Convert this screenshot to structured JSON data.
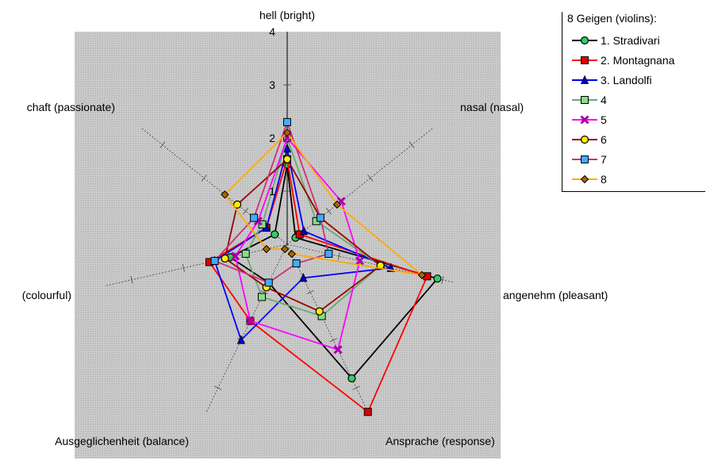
{
  "chart_data": {
    "type": "radar",
    "axes": [
      "hell (bright)",
      "nasal (nasal)",
      "angenehm (pleasant)",
      "Ansprache (response)",
      "Ausgeglichenheit (balance)",
      "(colourful)",
      "chaft (passionate)"
    ],
    "r_ticks": [
      "1",
      "2",
      "3",
      "4"
    ],
    "r_max": 4,
    "legend_title": "8 Geigen (violins):",
    "series": [
      {
        "name": "1. Stradivari",
        "values": [
          1.5,
          0.2,
          2.9,
          2.8,
          0.8,
          1.1,
          0.3
        ],
        "color": "#000000",
        "marker": "circle",
        "marker_fill": "#33cc66"
      },
      {
        "name": "2. Montagnana",
        "values": [
          1.6,
          0.3,
          2.7,
          3.5,
          1.6,
          1.5,
          0.5
        ],
        "color": "#ff0000",
        "marker": "square",
        "marker_fill": "#dd0000"
      },
      {
        "name": "3. Landolfi",
        "values": [
          1.8,
          0.4,
          2.0,
          0.7,
          2.0,
          1.4,
          0.5
        ],
        "color": "#0000ff",
        "marker": "triangle",
        "marker_fill": "#0000cc"
      },
      {
        "name": "4",
        "values": [
          2.0,
          0.7,
          1.8,
          1.5,
          1.1,
          0.8,
          0.6
        ],
        "color": "#66aa77",
        "marker": "square",
        "marker_fill": "#88dd88"
      },
      {
        "name": "5",
        "values": [
          2.0,
          1.3,
          1.4,
          2.2,
          1.6,
          1.0,
          0.7
        ],
        "color": "#ff00ff",
        "marker": "x",
        "marker_fill": "#aa00aa"
      },
      {
        "name": "6",
        "values": [
          1.6,
          0.8,
          1.8,
          1.4,
          0.9,
          1.2,
          1.2
        ],
        "color": "#990000",
        "marker": "circle",
        "marker_fill": "#ffee00"
      },
      {
        "name": "7",
        "values": [
          2.3,
          0.8,
          0.8,
          0.4,
          0.8,
          1.4,
          0.8
        ],
        "color": "#cc3377",
        "marker": "square",
        "marker_fill": "#44aaff"
      },
      {
        "name": "8",
        "values": [
          2.1,
          1.2,
          2.6,
          0.2,
          0.1,
          0.4,
          1.5
        ],
        "color": "#ffaa00",
        "marker": "diamond",
        "marker_fill": "#aa6600"
      }
    ]
  }
}
